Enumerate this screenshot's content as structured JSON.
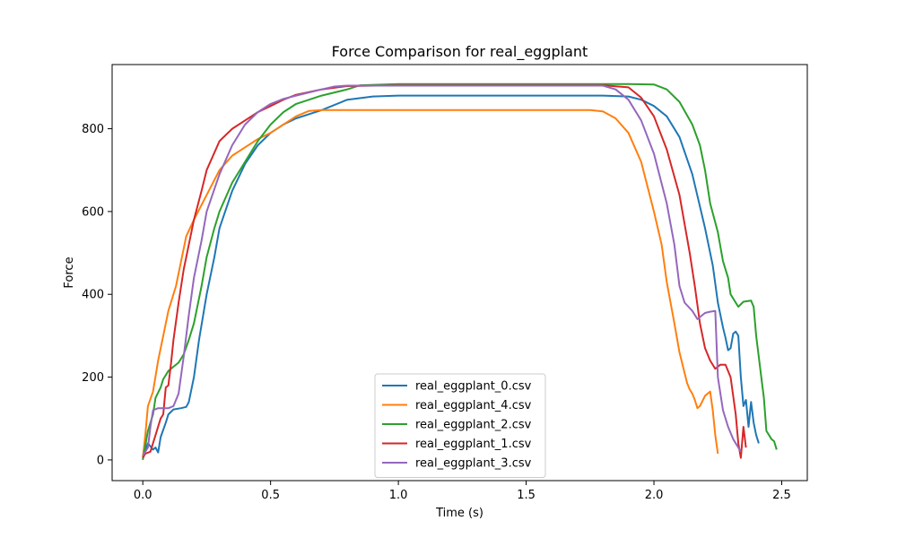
{
  "chart_data": {
    "type": "line",
    "title": "Force Comparison for real_eggplant",
    "xlabel": "Time (s)",
    "ylabel": "Force",
    "xlim": [
      -0.12,
      2.6
    ],
    "ylim": [
      -50,
      955
    ],
    "xticks": [
      0.0,
      0.5,
      1.0,
      1.5,
      2.0,
      2.5
    ],
    "xtick_labels": [
      "0.0",
      "0.5",
      "1.0",
      "1.5",
      "2.0",
      "2.5"
    ],
    "yticks": [
      0,
      200,
      400,
      600,
      800
    ],
    "ytick_labels": [
      "0",
      "200",
      "400",
      "600",
      "800"
    ],
    "grid": false,
    "legend_position": "lower-center",
    "series": [
      {
        "name": "real_eggplant_0.csv",
        "color": "#1f77b4",
        "points": [
          [
            0.0,
            10
          ],
          [
            0.02,
            40
          ],
          [
            0.04,
            25
          ],
          [
            0.05,
            30
          ],
          [
            0.06,
            18
          ],
          [
            0.07,
            55
          ],
          [
            0.09,
            90
          ],
          [
            0.1,
            110
          ],
          [
            0.12,
            122
          ],
          [
            0.15,
            125
          ],
          [
            0.17,
            128
          ],
          [
            0.18,
            140
          ],
          [
            0.2,
            200
          ],
          [
            0.22,
            290
          ],
          [
            0.25,
            400
          ],
          [
            0.28,
            490
          ],
          [
            0.3,
            560
          ],
          [
            0.35,
            650
          ],
          [
            0.4,
            715
          ],
          [
            0.45,
            760
          ],
          [
            0.5,
            790
          ],
          [
            0.55,
            810
          ],
          [
            0.6,
            825
          ],
          [
            0.7,
            845
          ],
          [
            0.8,
            870
          ],
          [
            0.9,
            878
          ],
          [
            1.0,
            880
          ],
          [
            1.2,
            880
          ],
          [
            1.5,
            880
          ],
          [
            1.8,
            880
          ],
          [
            1.9,
            878
          ],
          [
            1.95,
            870
          ],
          [
            2.0,
            855
          ],
          [
            2.05,
            830
          ],
          [
            2.1,
            780
          ],
          [
            2.15,
            690
          ],
          [
            2.2,
            560
          ],
          [
            2.23,
            470
          ],
          [
            2.25,
            380
          ],
          [
            2.27,
            320
          ],
          [
            2.28,
            295
          ],
          [
            2.29,
            265
          ],
          [
            2.3,
            270
          ],
          [
            2.31,
            305
          ],
          [
            2.32,
            310
          ],
          [
            2.33,
            300
          ],
          [
            2.34,
            200
          ],
          [
            2.35,
            130
          ],
          [
            2.36,
            145
          ],
          [
            2.37,
            80
          ],
          [
            2.38,
            140
          ],
          [
            2.39,
            90
          ],
          [
            2.4,
            60
          ],
          [
            2.41,
            40
          ]
        ]
      },
      {
        "name": "real_eggplant_4.csv",
        "color": "#ff7f0e",
        "points": [
          [
            0.0,
            5
          ],
          [
            0.01,
            60
          ],
          [
            0.02,
            130
          ],
          [
            0.04,
            165
          ],
          [
            0.06,
            240
          ],
          [
            0.08,
            300
          ],
          [
            0.1,
            360
          ],
          [
            0.13,
            420
          ],
          [
            0.15,
            480
          ],
          [
            0.17,
            540
          ],
          [
            0.2,
            580
          ],
          [
            0.25,
            640
          ],
          [
            0.3,
            700
          ],
          [
            0.35,
            735
          ],
          [
            0.4,
            755
          ],
          [
            0.45,
            775
          ],
          [
            0.5,
            790
          ],
          [
            0.55,
            810
          ],
          [
            0.6,
            830
          ],
          [
            0.65,
            843
          ],
          [
            0.7,
            845
          ],
          [
            1.0,
            845
          ],
          [
            1.5,
            845
          ],
          [
            1.75,
            845
          ],
          [
            1.8,
            842
          ],
          [
            1.85,
            825
          ],
          [
            1.9,
            790
          ],
          [
            1.95,
            720
          ],
          [
            2.0,
            600
          ],
          [
            2.03,
            520
          ],
          [
            2.05,
            430
          ],
          [
            2.08,
            330
          ],
          [
            2.1,
            260
          ],
          [
            2.12,
            210
          ],
          [
            2.13,
            185
          ],
          [
            2.14,
            170
          ],
          [
            2.15,
            160
          ],
          [
            2.16,
            145
          ],
          [
            2.17,
            125
          ],
          [
            2.18,
            130
          ],
          [
            2.2,
            155
          ],
          [
            2.22,
            165
          ],
          [
            2.23,
            120
          ],
          [
            2.24,
            60
          ],
          [
            2.25,
            15
          ]
        ]
      },
      {
        "name": "real_eggplant_2.csv",
        "color": "#2ca02c",
        "points": [
          [
            0.0,
            0
          ],
          [
            0.02,
            70
          ],
          [
            0.04,
            110
          ],
          [
            0.05,
            150
          ],
          [
            0.07,
            175
          ],
          [
            0.08,
            195
          ],
          [
            0.1,
            215
          ],
          [
            0.12,
            225
          ],
          [
            0.14,
            235
          ],
          [
            0.16,
            255
          ],
          [
            0.18,
            290
          ],
          [
            0.2,
            330
          ],
          [
            0.23,
            420
          ],
          [
            0.25,
            490
          ],
          [
            0.28,
            560
          ],
          [
            0.3,
            600
          ],
          [
            0.35,
            670
          ],
          [
            0.4,
            720
          ],
          [
            0.45,
            770
          ],
          [
            0.5,
            810
          ],
          [
            0.55,
            840
          ],
          [
            0.6,
            860
          ],
          [
            0.7,
            880
          ],
          [
            0.8,
            895
          ],
          [
            0.85,
            905
          ],
          [
            1.0,
            908
          ],
          [
            1.5,
            908
          ],
          [
            1.9,
            908
          ],
          [
            2.0,
            907
          ],
          [
            2.05,
            895
          ],
          [
            2.1,
            865
          ],
          [
            2.15,
            810
          ],
          [
            2.18,
            760
          ],
          [
            2.2,
            700
          ],
          [
            2.22,
            620
          ],
          [
            2.25,
            550
          ],
          [
            2.27,
            480
          ],
          [
            2.29,
            440
          ],
          [
            2.3,
            400
          ],
          [
            2.32,
            380
          ],
          [
            2.33,
            370
          ],
          [
            2.35,
            382
          ],
          [
            2.38,
            385
          ],
          [
            2.39,
            370
          ],
          [
            2.4,
            300
          ],
          [
            2.42,
            200
          ],
          [
            2.43,
            150
          ],
          [
            2.44,
            70
          ],
          [
            2.45,
            60
          ],
          [
            2.46,
            50
          ],
          [
            2.47,
            45
          ],
          [
            2.48,
            25
          ]
        ]
      },
      {
        "name": "real_eggplant_1.csv",
        "color": "#d62728",
        "points": [
          [
            0.0,
            5
          ],
          [
            0.01,
            15
          ],
          [
            0.03,
            20
          ],
          [
            0.05,
            60
          ],
          [
            0.07,
            100
          ],
          [
            0.08,
            110
          ],
          [
            0.09,
            175
          ],
          [
            0.1,
            180
          ],
          [
            0.11,
            230
          ],
          [
            0.12,
            290
          ],
          [
            0.14,
            380
          ],
          [
            0.16,
            460
          ],
          [
            0.18,
            520
          ],
          [
            0.2,
            580
          ],
          [
            0.23,
            650
          ],
          [
            0.25,
            700
          ],
          [
            0.3,
            770
          ],
          [
            0.35,
            800
          ],
          [
            0.4,
            820
          ],
          [
            0.45,
            840
          ],
          [
            0.5,
            855
          ],
          [
            0.55,
            870
          ],
          [
            0.6,
            882
          ],
          [
            0.7,
            895
          ],
          [
            0.8,
            903
          ],
          [
            1.0,
            905
          ],
          [
            1.5,
            905
          ],
          [
            1.8,
            905
          ],
          [
            1.9,
            900
          ],
          [
            1.95,
            875
          ],
          [
            2.0,
            830
          ],
          [
            2.05,
            750
          ],
          [
            2.1,
            640
          ],
          [
            2.14,
            500
          ],
          [
            2.16,
            420
          ],
          [
            2.18,
            330
          ],
          [
            2.2,
            270
          ],
          [
            2.22,
            240
          ],
          [
            2.24,
            220
          ],
          [
            2.26,
            230
          ],
          [
            2.28,
            230
          ],
          [
            2.3,
            200
          ],
          [
            2.32,
            110
          ],
          [
            2.33,
            40
          ],
          [
            2.34,
            5
          ],
          [
            2.35,
            80
          ],
          [
            2.36,
            30
          ]
        ]
      },
      {
        "name": "real_eggplant_3.csv",
        "color": "#9467bd",
        "points": [
          [
            0.0,
            10
          ],
          [
            0.02,
            30
          ],
          [
            0.03,
            80
          ],
          [
            0.04,
            120
          ],
          [
            0.06,
            125
          ],
          [
            0.1,
            125
          ],
          [
            0.12,
            130
          ],
          [
            0.14,
            160
          ],
          [
            0.16,
            250
          ],
          [
            0.18,
            350
          ],
          [
            0.2,
            440
          ],
          [
            0.23,
            530
          ],
          [
            0.25,
            600
          ],
          [
            0.3,
            690
          ],
          [
            0.35,
            760
          ],
          [
            0.4,
            810
          ],
          [
            0.45,
            840
          ],
          [
            0.5,
            860
          ],
          [
            0.55,
            872
          ],
          [
            0.6,
            880
          ],
          [
            0.7,
            895
          ],
          [
            0.75,
            902
          ],
          [
            0.8,
            904
          ],
          [
            1.0,
            904
          ],
          [
            1.5,
            904
          ],
          [
            1.8,
            904
          ],
          [
            1.85,
            895
          ],
          [
            1.9,
            870
          ],
          [
            1.95,
            820
          ],
          [
            2.0,
            740
          ],
          [
            2.05,
            620
          ],
          [
            2.08,
            520
          ],
          [
            2.1,
            420
          ],
          [
            2.12,
            380
          ],
          [
            2.15,
            360
          ],
          [
            2.17,
            340
          ],
          [
            2.2,
            355
          ],
          [
            2.22,
            358
          ],
          [
            2.24,
            360
          ],
          [
            2.25,
            200
          ],
          [
            2.27,
            120
          ],
          [
            2.29,
            80
          ],
          [
            2.31,
            50
          ],
          [
            2.33,
            30
          ],
          [
            2.34,
            20
          ]
        ]
      }
    ]
  }
}
